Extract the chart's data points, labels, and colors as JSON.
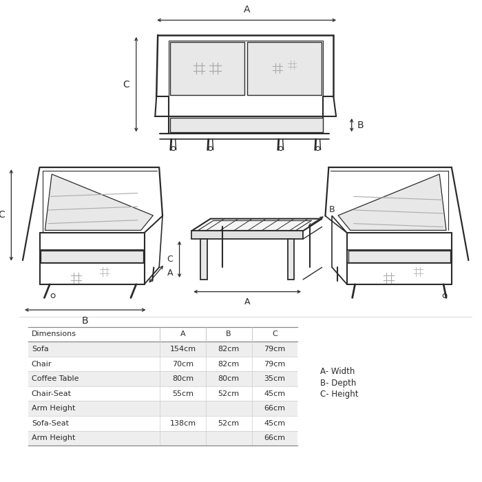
{
  "background_color": "#ffffff",
  "line_color": "#2a2a2a",
  "cushion_color": "#e8e8e8",
  "cushion_line": "#aaaaaa",
  "dim_color": "#1a1a1a",
  "table_row_bg_odd": "#eeeeee",
  "table_row_bg_even": "#ffffff",
  "table_data": {
    "headers": [
      "Dimensions",
      "A",
      "B",
      "C"
    ],
    "rows": [
      [
        "Sofa",
        "154cm",
        "82cm",
        "79cm"
      ],
      [
        "Chair",
        "70cm",
        "82cm",
        "79cm"
      ],
      [
        "Coffee Table",
        "80cm",
        "80cm",
        "35cm"
      ],
      [
        "Chair-Seat",
        "55cm",
        "52cm",
        "45cm"
      ],
      [
        "Arm Height",
        "",
        "",
        "66cm"
      ],
      [
        "Sofa-Seat",
        "138cm",
        "52cm",
        "45cm"
      ],
      [
        "Arm Height",
        "",
        "",
        "66cm"
      ]
    ]
  },
  "legend": [
    "A- Width",
    "B- Depth",
    "C- Height"
  ]
}
